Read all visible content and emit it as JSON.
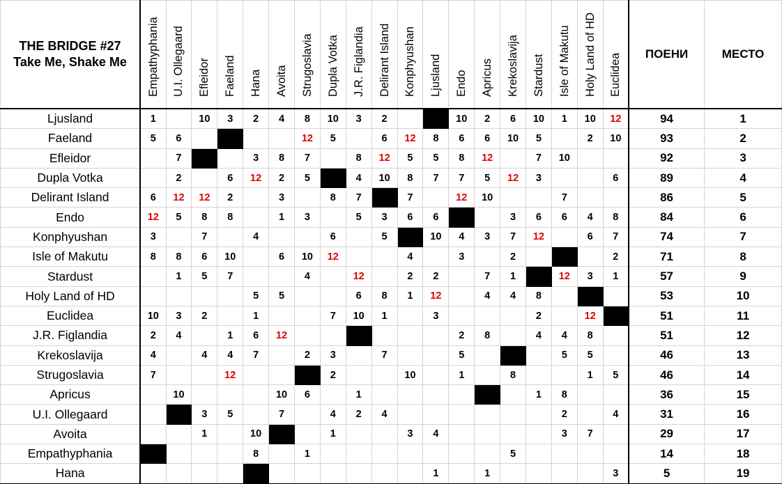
{
  "title_line1": "THE BRIDGE #27",
  "title_line2": "Take Me, Shake Me",
  "points_header": "ПОЕНИ",
  "place_header": "МЕСТО",
  "highlight_color": "#e00000",
  "self_vote_color": "#000000",
  "voters": [
    "Empathyphania",
    "U.I. Ollegaard",
    "Efleidor",
    "Faeland",
    "Hana",
    "Avoita",
    "Strugoslavia",
    "Dupla Votka",
    "J.R. Figlandia",
    "Delirant Island",
    "Konphyushan",
    "Ljusland",
    "Endo",
    "Apricus",
    "Krekoslavija",
    "Stardust",
    "Isle of Makutu",
    "Holy Land of HD",
    "Euclidea"
  ],
  "rows": [
    {
      "country": "Ljusland",
      "scores": [
        "1",
        "",
        "10",
        "3",
        "2",
        "4",
        "8",
        "10",
        "3",
        "2",
        "",
        "X",
        "10",
        "2",
        "6",
        "10",
        "1",
        "10",
        "12"
      ],
      "points": "94",
      "place": "1"
    },
    {
      "country": "Faeland",
      "scores": [
        "5",
        "6",
        "",
        "X",
        "",
        "",
        "12",
        "5",
        "",
        "6",
        "12",
        "8",
        "6",
        "6",
        "10",
        "5",
        "",
        "2",
        "10"
      ],
      "points": "93",
      "place": "2"
    },
    {
      "country": "Efleidor",
      "scores": [
        "",
        "7",
        "X",
        "",
        "3",
        "8",
        "7",
        "",
        "8",
        "12",
        "5",
        "5",
        "8",
        "12",
        "",
        "7",
        "10",
        "",
        ""
      ],
      "points": "92",
      "place": "3"
    },
    {
      "country": "Dupla Votka",
      "scores": [
        "",
        "2",
        "",
        "6",
        "12",
        "2",
        "5",
        "X",
        "4",
        "10",
        "8",
        "7",
        "7",
        "5",
        "12",
        "3",
        "",
        "",
        "6"
      ],
      "points": "89",
      "place": "4"
    },
    {
      "country": "Delirant Island",
      "scores": [
        "6",
        "12",
        "12",
        "2",
        "",
        "3",
        "",
        "8",
        "7",
        "X",
        "7",
        "",
        "12",
        "10",
        "",
        "",
        "7",
        "",
        ""
      ],
      "points": "86",
      "place": "5"
    },
    {
      "country": "Endo",
      "scores": [
        "12",
        "5",
        "8",
        "8",
        "",
        "1",
        "3",
        "",
        "5",
        "3",
        "6",
        "6",
        "X",
        "",
        "3",
        "6",
        "6",
        "4",
        "8"
      ],
      "points": "84",
      "place": "6"
    },
    {
      "country": "Konphyushan",
      "scores": [
        "3",
        "",
        "7",
        "",
        "4",
        "",
        "",
        "6",
        "",
        "5",
        "X",
        "10",
        "4",
        "3",
        "7",
        "12",
        "",
        "6",
        "7"
      ],
      "points": "74",
      "place": "7"
    },
    {
      "country": "Isle of Makutu",
      "scores": [
        "8",
        "8",
        "6",
        "10",
        "",
        "6",
        "10",
        "12",
        "",
        "",
        "4",
        "",
        "3",
        "",
        "2",
        "",
        "X",
        "",
        "2"
      ],
      "points": "71",
      "place": "8"
    },
    {
      "country": "Stardust",
      "scores": [
        "",
        "1",
        "5",
        "7",
        "",
        "",
        "4",
        "",
        "12",
        "",
        "2",
        "2",
        "",
        "7",
        "1",
        "X",
        "12",
        "3",
        "1"
      ],
      "points": "57",
      "place": "9"
    },
    {
      "country": "Holy Land of HD",
      "scores": [
        "",
        "",
        "",
        "",
        "5",
        "5",
        "",
        "",
        "6",
        "8",
        "1",
        "12",
        "",
        "4",
        "4",
        "8",
        "",
        "X",
        ""
      ],
      "points": "53",
      "place": "10"
    },
    {
      "country": "Euclidea",
      "scores": [
        "10",
        "3",
        "2",
        "",
        "1",
        "",
        "",
        "7",
        "10",
        "1",
        "",
        "3",
        "",
        "",
        "",
        "2",
        "",
        "12",
        "X"
      ],
      "points": "51",
      "place": "11"
    },
    {
      "country": "J.R. Figlandia",
      "scores": [
        "2",
        "4",
        "",
        "1",
        "6",
        "12",
        "",
        "",
        "X",
        "",
        "",
        "",
        "2",
        "8",
        "",
        "4",
        "4",
        "8",
        ""
      ],
      "points": "51",
      "place": "12"
    },
    {
      "country": "Krekoslavija",
      "scores": [
        "4",
        "",
        "4",
        "4",
        "7",
        "",
        "2",
        "3",
        "",
        "7",
        "",
        "",
        "5",
        "",
        "X",
        "",
        "5",
        "5",
        ""
      ],
      "points": "46",
      "place": "13"
    },
    {
      "country": "Strugoslavia",
      "scores": [
        "7",
        "",
        "",
        "12",
        "",
        "",
        "X",
        "2",
        "",
        "",
        "10",
        "",
        "1",
        "",
        "8",
        "",
        "",
        "1",
        "5"
      ],
      "points": "46",
      "place": "14"
    },
    {
      "country": "Apricus",
      "scores": [
        "",
        "10",
        "",
        "",
        "",
        "10",
        "6",
        "",
        "1",
        "",
        "",
        "",
        "",
        "X",
        "",
        "1",
        "8",
        "",
        ""
      ],
      "points": "36",
      "place": "15"
    },
    {
      "country": "U.I. Ollegaard",
      "scores": [
        "",
        "X",
        "3",
        "5",
        "",
        "7",
        "",
        "4",
        "2",
        "4",
        "",
        "",
        "",
        "",
        "",
        "",
        "2",
        "",
        "4"
      ],
      "points": "31",
      "place": "16"
    },
    {
      "country": "Avoita",
      "scores": [
        "",
        "",
        "1",
        "",
        "10",
        "X",
        "",
        "1",
        "",
        "",
        "3",
        "4",
        "",
        "",
        "",
        "",
        "3",
        "7",
        ""
      ],
      "points": "29",
      "place": "17"
    },
    {
      "country": "Empathyphania",
      "scores": [
        "X",
        "",
        "",
        "",
        "8",
        "",
        "1",
        "",
        "",
        "",
        "",
        "",
        "",
        "",
        "5",
        "",
        "",
        "",
        ""
      ],
      "points": "14",
      "place": "18"
    },
    {
      "country": "Hana",
      "scores": [
        "",
        "",
        "",
        "",
        "X",
        "",
        "",
        "",
        "",
        "",
        "",
        "1",
        "",
        "1",
        "",
        "",
        "",
        "",
        "3"
      ],
      "points": "5",
      "place": "19"
    }
  ]
}
